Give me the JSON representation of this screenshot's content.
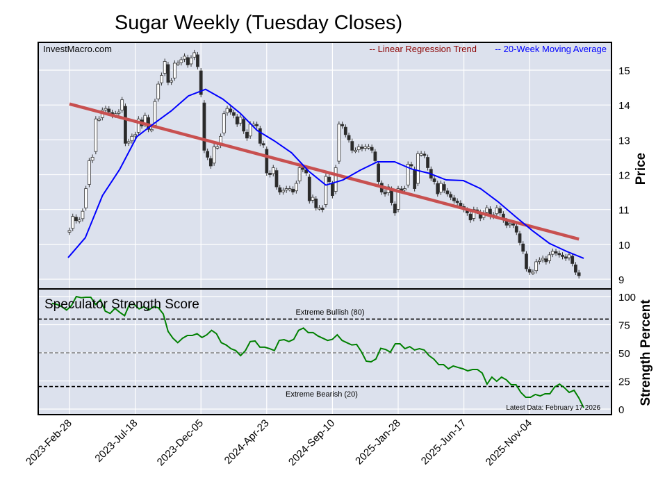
{
  "chart_data": [
    {
      "type": "candlestick",
      "title": "Sugar Weekly (Tuesday Closes)",
      "watermark": "InvestMacro.com",
      "ylabel": "Price",
      "ylim": [
        8.8,
        15.8
      ],
      "yticks": [
        9,
        10,
        11,
        12,
        13,
        14,
        15
      ],
      "xticks": [
        "2023-Feb-28",
        "2023-Jul-18",
        "2023-Dec-05",
        "2024-Apr-23",
        "2024-Sep-10",
        "2025-Jan-28",
        "2025-Jun-17",
        "2025-Nov-04"
      ],
      "grid": true,
      "legend_position": "top-right",
      "legend": [
        {
          "label": "-- Linear Regression Trend",
          "color": "#8b0000"
        },
        {
          "label": "-- 20-Week Moving Average",
          "color": "#0000ff"
        }
      ],
      "price_series": {
        "start": "2023-02-28",
        "end": "2026-02-17",
        "frequency": "weekly",
        "closes": [
          10.4,
          10.8,
          10.68,
          10.7,
          10.95,
          11.6,
          12.4,
          12.5,
          13.6,
          13.6,
          13.85,
          13.9,
          13.8,
          13.7,
          13.75,
          13.8,
          14.15,
          12.9,
          12.95,
          13.1,
          13.15,
          13.6,
          13.4,
          13.7,
          13.3,
          13.3,
          14.1,
          14.6,
          14.85,
          15.25,
          14.65,
          14.7,
          15.2,
          15.2,
          15.3,
          15.4,
          15.15,
          15.35,
          15.5,
          15.1,
          14.3,
          12.7,
          12.5,
          12.25,
          12.8,
          12.8,
          13.1,
          13.75,
          13.9,
          13.8,
          13.7,
          13.45,
          13.65,
          13.25,
          13.05,
          13.45,
          13.45,
          13.4,
          12.9,
          12.85,
          12.05,
          12.0,
          12.2,
          11.65,
          11.5,
          11.55,
          11.6,
          11.6,
          11.5,
          11.75,
          12.2,
          12.15,
          12.05,
          11.25,
          11.35,
          11.05,
          11.05,
          11.0,
          11.95,
          11.8,
          11.4,
          12.2,
          13.45,
          13.4,
          13.15,
          13.0,
          12.7,
          12.7,
          12.8,
          12.75,
          12.8,
          12.8,
          12.7,
          12.4,
          11.8,
          11.5,
          11.45,
          11.65,
          11.2,
          10.9,
          11.6,
          11.55,
          11.6,
          12.3,
          12.25,
          11.6,
          12.6,
          12.6,
          12.55,
          12.2,
          11.9,
          11.8,
          11.45,
          11.75,
          11.55,
          11.45,
          11.35,
          11.25,
          11.2,
          11.1,
          11.0,
          10.9,
          10.7,
          11.0,
          10.95,
          10.75,
          10.9,
          11.05,
          10.8,
          10.85,
          11.05,
          10.9,
          10.7,
          10.55,
          10.6,
          10.55,
          10.35,
          10.05,
          9.8,
          9.3,
          9.2,
          9.2,
          9.5,
          9.55,
          9.6,
          9.5,
          9.7,
          9.8,
          9.75,
          9.7,
          9.65,
          9.6,
          9.7,
          9.45,
          9.2,
          9.1
        ]
      },
      "regression_trend": {
        "start_value": 14.03,
        "end_value": 10.15,
        "color": "#c85050"
      },
      "moving_average_20wk": {
        "color": "#0000ff",
        "values": [
          9.62,
          10.19,
          11.4,
          12.15,
          13.09,
          13.47,
          13.83,
          14.26,
          14.45,
          14.17,
          13.77,
          13.27,
          12.97,
          12.63,
          12.1,
          11.7,
          11.85,
          12.13,
          12.37,
          12.37,
          12.16,
          12.04,
          11.85,
          11.83,
          11.6,
          11.23,
          10.81,
          10.4,
          10.03,
          9.8,
          9.6
        ]
      }
    },
    {
      "type": "line",
      "title": "Speculator Strength Score",
      "ylabel": "Strength Percent",
      "ylim": [
        0,
        100
      ],
      "yticks": [
        0,
        25,
        50,
        75,
        100
      ],
      "grid": true,
      "color": "#008000",
      "reference_lines": [
        {
          "value": 80,
          "label": "Extreme Bullish (80)",
          "color": "#000000"
        },
        {
          "value": 50,
          "label": "",
          "color": "#808080"
        },
        {
          "value": 20,
          "label": "Extreme Bearish (20)",
          "color": "#000000"
        }
      ],
      "annotation": "Latest Data: February 17 2026",
      "values": [
        94,
        93,
        91,
        88,
        92,
        100,
        99,
        99.4,
        99.4,
        93,
        97,
        87,
        85,
        89.5,
        86,
        83,
        93,
        93,
        89,
        91,
        88,
        91,
        90,
        84.5,
        69,
        63,
        59,
        63,
        65.4,
        65.4,
        67,
        63.6,
        66,
        70,
        67,
        59,
        57,
        53.7,
        52,
        47.5,
        52,
        60,
        60.5,
        55,
        55,
        53.7,
        52,
        61,
        61.7,
        60,
        62,
        70,
        72,
        68,
        68,
        65,
        63,
        61,
        62,
        66,
        61,
        59,
        57,
        57.5,
        51,
        42.6,
        42,
        44.5,
        54,
        53,
        50.6,
        58,
        58,
        53.7,
        55.5,
        52.5,
        53.7,
        52.5,
        47.5,
        44.4,
        39.5,
        39.5,
        35.8,
        38.3,
        37,
        35.8,
        34,
        35.2,
        35.2,
        32,
        22.2,
        28.4,
        24.7,
        28.4,
        26,
        21.6,
        21.6,
        14.8,
        10.5,
        10.5,
        13,
        11.7,
        13.6,
        13.6,
        19.7,
        22.2,
        19,
        14.8,
        16.7,
        9.9,
        1.2
      ]
    }
  ]
}
